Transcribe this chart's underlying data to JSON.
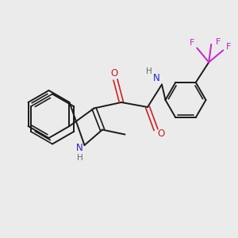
{
  "background_color": "#ebebeb",
  "bond_color": "#1a1a1a",
  "N_color": "#2222cc",
  "O_color": "#cc2222",
  "F_color": "#cc22cc",
  "H_color": "#666666",
  "figsize": [
    3.0,
    3.0
  ],
  "dpi": 100,
  "xlim": [
    0,
    10
  ],
  "ylim": [
    0,
    10
  ]
}
